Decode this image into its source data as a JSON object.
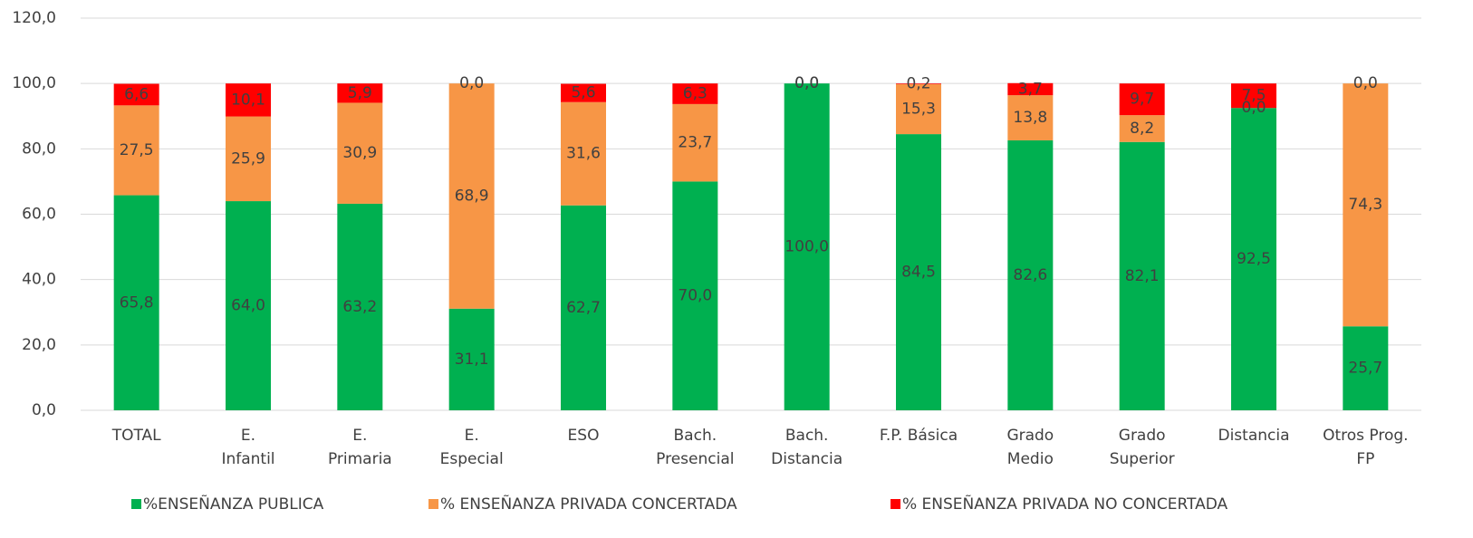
{
  "chart_data": {
    "type": "stacked_bar",
    "categories": [
      "TOTAL",
      "E.\nInfantil",
      "E.\nPrimaria",
      "E.\nEspecial",
      "ESO",
      "Bach.\nPresencial",
      "Bach.\nDistancia",
      "F.P. Básica",
      "Grado\nMedio",
      "Grado\nSuperior",
      "Distancia",
      "Otros Prog.\nFP"
    ],
    "series": [
      {
        "name": "%ENSEÑANZA PUBLICA",
        "color": "#00b050",
        "values": [
          65.8,
          64.0,
          63.2,
          31.1,
          62.7,
          70.0,
          100.0,
          84.5,
          82.6,
          82.1,
          92.5,
          25.7
        ],
        "value_labels": [
          "65,8",
          "64,0",
          "63,2",
          "31,1",
          "62,7",
          "70,0",
          "100,0",
          "84,5",
          "82,6",
          "82,1",
          "92,5",
          "25,7"
        ]
      },
      {
        "name": "% ENSEÑANZA PRIVADA CONCERTADA",
        "color": "#f79646",
        "values": [
          27.5,
          25.9,
          30.9,
          68.9,
          31.6,
          23.7,
          0.0,
          15.3,
          13.8,
          8.2,
          0.0,
          74.3
        ],
        "value_labels": [
          "27,5",
          "25,9",
          "30,9",
          "68,9",
          "31,6",
          "23,7",
          "0,0",
          "15,3",
          "13,8",
          "8,2",
          "0,0",
          "74,3"
        ]
      },
      {
        "name": "% ENSEÑANZA PRIVADA NO CONCERTADA",
        "color": "#ff0000",
        "values": [
          6.6,
          10.1,
          5.9,
          0.0,
          5.6,
          6.3,
          0.0,
          0.2,
          3.7,
          9.7,
          7.5,
          0.0
        ],
        "value_labels": [
          "6,6",
          "10,1",
          "5,9",
          "0,0",
          "5,6",
          "6,3",
          "0,0",
          "0,2",
          "3,7",
          "9,7",
          "7,5",
          "0,0"
        ]
      }
    ],
    "ylim": [
      0,
      120
    ],
    "yticks": [
      {
        "value": 0,
        "label": "0,0"
      },
      {
        "value": 20,
        "label": "20,0"
      },
      {
        "value": 40,
        "label": "40,0"
      },
      {
        "value": 60,
        "label": "60,0"
      },
      {
        "value": 80,
        "label": "80,0"
      },
      {
        "value": 100,
        "label": "100,0"
      },
      {
        "value": 120,
        "label": "120,0"
      }
    ],
    "grid": true,
    "legend": "bottom"
  }
}
